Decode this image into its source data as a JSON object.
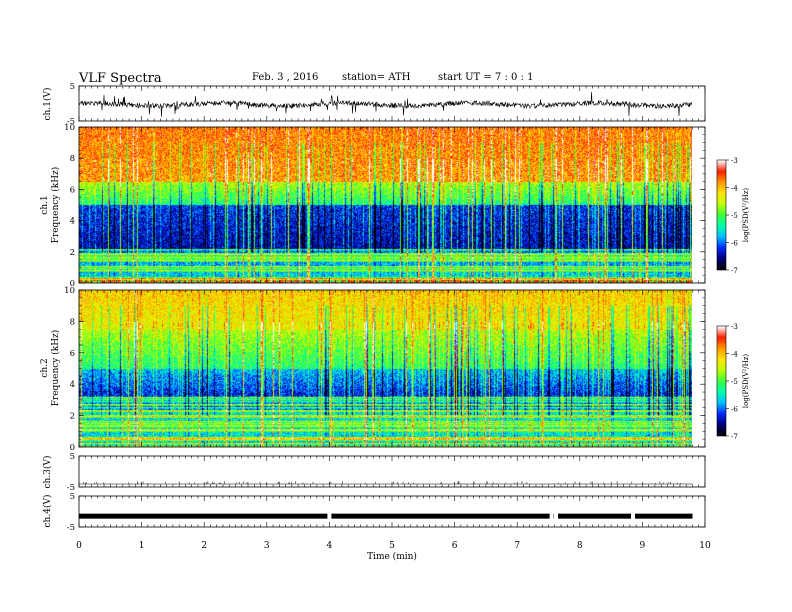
{
  "header": {
    "title": "VLF  Spectra",
    "date": "Feb. 3  , 2016",
    "station": "station= ATH",
    "start": "start  UT  =   7  : 0  : 1"
  },
  "chart_data": [
    {
      "type": "line",
      "name": "ch1-waveform",
      "ylabel": "ch.1(V)",
      "ylim": [
        -5,
        5
      ],
      "yticks": [
        "5",
        "-5"
      ],
      "x_range": [
        0,
        9.8
      ],
      "description_level": 0.2
    },
    {
      "type": "heatmap",
      "name": "ch1-spectrogram",
      "ylabel": "ch.1\nFrequency  (kHz)",
      "ylabel_lines": [
        "ch.1",
        "Frequency  (kHz)"
      ],
      "ylim": [
        0,
        10
      ],
      "yticks": [
        "0",
        "2",
        "4",
        "6",
        "8",
        "10"
      ],
      "colorbar": {
        "label": "log(PSD(V²/Hz)",
        "range": [
          -7,
          -3
        ],
        "ticks": [
          "-3",
          "-4",
          "-5",
          "-6",
          "-7"
        ]
      }
    },
    {
      "type": "heatmap",
      "name": "ch2-spectrogram",
      "ylabel_lines": [
        "ch.2",
        "Frequency  (kHz)"
      ],
      "ylim": [
        0,
        10
      ],
      "yticks": [
        "0",
        "2",
        "4",
        "6",
        "8",
        "10"
      ],
      "colorbar": {
        "label": "log(PSD(V²/Hz)",
        "range": [
          -7,
          -3
        ],
        "ticks": [
          "-3",
          "-4",
          "-5",
          "-6",
          "-7"
        ]
      }
    },
    {
      "type": "line",
      "name": "ch3-waveform",
      "ylabel": "ch.3(V)",
      "ylim": [
        -5,
        5
      ],
      "yticks": [
        "5",
        "-5"
      ],
      "level": 0
    },
    {
      "type": "line",
      "name": "ch4-waveform",
      "ylabel": "ch.4(V)",
      "ylim": [
        -5,
        5
      ],
      "yticks": [
        "5",
        "-5"
      ],
      "level": -1.5,
      "gaps": [
        4.0,
        7.55,
        7.62,
        8.85
      ]
    }
  ],
  "xaxis": {
    "label": "Time  (min)",
    "xlim": [
      0,
      10
    ],
    "ticks": [
      "0",
      "1",
      "2",
      "3",
      "4",
      "5",
      "6",
      "7",
      "8",
      "9",
      "10"
    ]
  },
  "colors": {
    "low": "#000066",
    "mid": "#00ff66",
    "high": "#ff0000"
  }
}
